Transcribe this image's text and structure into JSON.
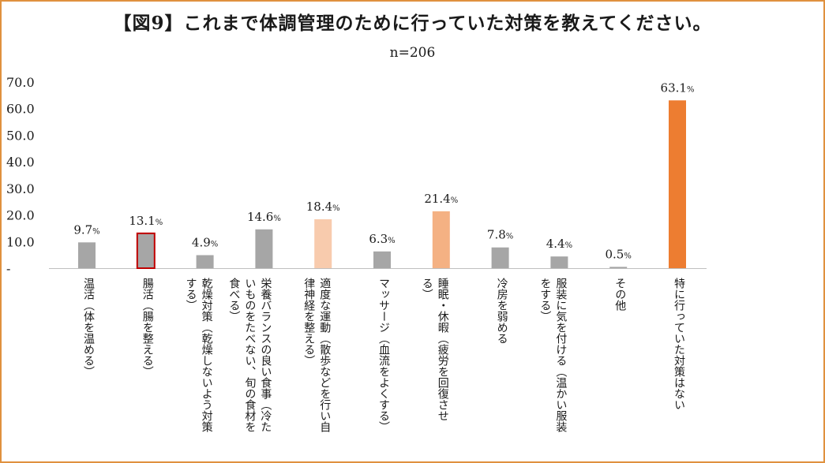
{
  "chart_data": {
    "type": "bar",
    "title": "【図9】これまで体調管理のために行っていた対策を教えてください。",
    "subtitle": "n=206",
    "ylim": [
      0,
      70
    ],
    "yticks": [
      "-",
      "10.0",
      "20.0",
      "30.0",
      "40.0",
      "50.0",
      "60.0",
      "70.0"
    ],
    "unit": "%",
    "categories": [
      [
        "温活（体を温める）"
      ],
      [
        "腸活（腸を整える）"
      ],
      [
        "乾燥対策（乾燥しないよう対策",
        "する）"
      ],
      [
        "栄養バランスの良い食事（冷た",
        "いものをたべない、旬の食材を",
        "食べる）"
      ],
      [
        "適度な運動（散歩などを行い自",
        "律神経を整える）"
      ],
      [
        "マッサージ（血流をよくする）"
      ],
      [
        "睡眠・休暇（疲労を回復させ",
        "る）"
      ],
      [
        "冷房を弱める"
      ],
      [
        "服装に気を付ける（温かい服装",
        "をする）"
      ],
      [
        "その他"
      ],
      [
        "特に行っていた対策はない"
      ]
    ],
    "values": [
      9.7,
      13.1,
      4.9,
      14.6,
      18.4,
      6.3,
      21.4,
      7.8,
      4.4,
      0.5,
      63.1
    ],
    "value_labels": [
      "9.7",
      "13.1",
      "4.9",
      "14.6",
      "18.4",
      "6.3",
      "21.4",
      "7.8",
      "4.4",
      "0.5",
      "63.1"
    ],
    "bar_colors": [
      "#a6a6a6",
      "#a6a6a6",
      "#a6a6a6",
      "#a6a6a6",
      "#f8cbad",
      "#a6a6a6",
      "#f4b183",
      "#a6a6a6",
      "#a6a6a6",
      "#a6a6a6",
      "#ed7d31"
    ],
    "bar_outline": [
      null,
      "#c00000",
      null,
      null,
      null,
      null,
      null,
      null,
      null,
      null,
      null
    ]
  }
}
